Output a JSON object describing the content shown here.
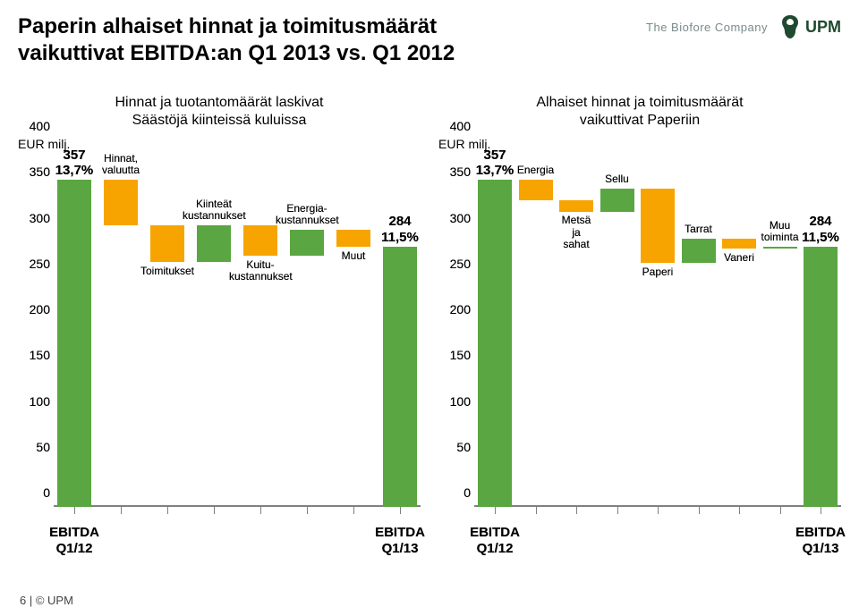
{
  "header": {
    "title_line1": "Paperin alhaiset hinnat ja toimitusmäärät",
    "title_line2": "vaikuttivat EBITDA:an Q1 2013 vs. Q1 2012",
    "tagline": "The Biofore Company",
    "logo_text": "UPM"
  },
  "colors": {
    "bar_green": "#5aa642",
    "bar_orange": "#f7a400",
    "text": "#000000",
    "axis": "#808080",
    "logo": "#1f4a2f",
    "tagline": "#7a8a8a"
  },
  "axes": {
    "ylabel": "EUR milj.",
    "ymin": 0,
    "ymax": 400,
    "ytick_step": 50,
    "yticks": [
      "0",
      "50",
      "100",
      "150",
      "200",
      "250",
      "300",
      "350",
      "400"
    ]
  },
  "chart_left": {
    "title_line1": "Hinnat ja tuotantomäärät laskivat",
    "title_line2": "Säästöjä kiinteissä kuluissa",
    "x_start_label_l1": "EBITDA",
    "x_start_label_l2": "Q1/12",
    "x_end_label_l1": "EBITDA",
    "x_end_label_l2": "Q1/13",
    "start_value": 357,
    "start_pct": "13,7%",
    "end_value": 284,
    "end_pct": "11,5%",
    "segments": [
      {
        "name": "start",
        "type": "total",
        "value": 357,
        "color": "#5aa642"
      },
      {
        "name": "hinnat-valuutta",
        "type": "neg",
        "from": 357,
        "to": 307,
        "label": "Hinnat,\nvaluutta",
        "color": "#f7a400"
      },
      {
        "name": "toimitukset",
        "type": "neg",
        "from": 307,
        "to": 267,
        "label": "Toimitukset",
        "color": "#f7a400"
      },
      {
        "name": "kiinteat",
        "type": "pos",
        "from": 267,
        "to": 307,
        "label": "Kiinteät\nkustannukset",
        "color": "#5aa642"
      },
      {
        "name": "kuitu",
        "type": "neg",
        "from": 307,
        "to": 274,
        "label": "Kuitu-\nkustannukset",
        "color": "#f7a400"
      },
      {
        "name": "energia",
        "type": "pos",
        "from": 274,
        "to": 302,
        "label": "Energia-\nkustannukset",
        "color": "#5aa642"
      },
      {
        "name": "muut",
        "type": "neg",
        "from": 302,
        "to": 284,
        "label": "Muut",
        "color": "#f7a400"
      },
      {
        "name": "end",
        "type": "total",
        "value": 284,
        "color": "#5aa642"
      }
    ]
  },
  "chart_right": {
    "title_line1": "Alhaiset hinnat ja toimitusmäärät",
    "title_line2": "vaikuttivat Paperiin",
    "x_start_label_l1": "EBITDA",
    "x_start_label_l2": "Q1/12",
    "x_end_label_l1": "EBITDA",
    "x_end_label_l2": "Q1/13",
    "start_value": 357,
    "start_pct": "13,7%",
    "end_value": 284,
    "end_pct": "11,5%",
    "segments": [
      {
        "name": "start",
        "type": "total",
        "value": 357,
        "color": "#5aa642"
      },
      {
        "name": "energia",
        "type": "neg",
        "from": 357,
        "to": 335,
        "label": "Energia",
        "color": "#f7a400"
      },
      {
        "name": "metsa-sahat",
        "type": "neg",
        "from": 335,
        "to": 322,
        "label": "Metsä\nja\nsahat",
        "color": "#f7a400"
      },
      {
        "name": "sellu",
        "type": "pos",
        "from": 322,
        "to": 347,
        "label": "Sellu",
        "color": "#5aa642"
      },
      {
        "name": "paperi",
        "type": "neg",
        "from": 347,
        "to": 266,
        "label": "Paperi",
        "color": "#f7a400"
      },
      {
        "name": "tarrat",
        "type": "pos",
        "from": 266,
        "to": 293,
        "label": "Tarrat",
        "color": "#5aa642"
      },
      {
        "name": "vaneri",
        "type": "neg",
        "from": 293,
        "to": 282,
        "label": "Vaneri",
        "color": "#f7a400"
      },
      {
        "name": "muu-toiminta",
        "type": "pos",
        "from": 282,
        "to": 284,
        "label": "Muu\ntoiminta",
        "color": "#5aa642"
      },
      {
        "name": "end",
        "type": "total",
        "value": 284,
        "color": "#5aa642"
      }
    ]
  },
  "footer": "6 | © UPM"
}
